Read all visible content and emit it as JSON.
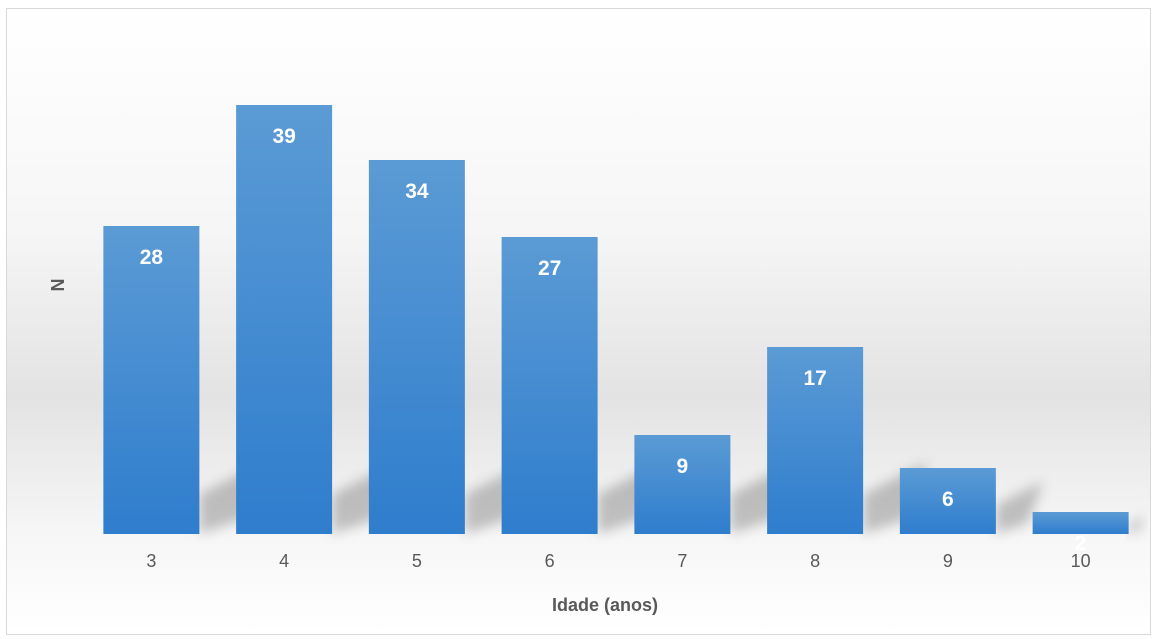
{
  "chart_data": {
    "type": "bar",
    "categories": [
      "3",
      "4",
      "5",
      "6",
      "7",
      "8",
      "9",
      "10"
    ],
    "values": [
      28,
      39,
      34,
      27,
      9,
      17,
      6,
      2
    ],
    "title": "",
    "xlabel": "Idade (anos)",
    "ylabel": "N",
    "ylim": [
      0,
      39
    ],
    "grid": false,
    "legend": "none",
    "data_labels": true,
    "colors": {
      "bar_top": "#5b9bd5",
      "bar_bottom": "#2f7dcd",
      "label": "#ffffff",
      "axis_text": "#595959"
    }
  }
}
